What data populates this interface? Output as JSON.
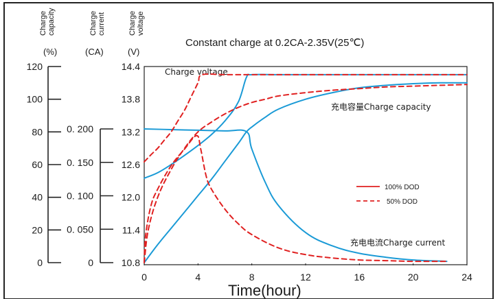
{
  "chart_data": {
    "type": "line",
    "title": "Constant charge at 0.2CA-2.35V(25℃)",
    "xlabel": "Time(hour)",
    "x_ticks": [
      0,
      4,
      8,
      12,
      16,
      20,
      24
    ],
    "xlim": [
      0,
      24
    ],
    "axes": [
      {
        "key": "capacity",
        "label_line1": "Charge",
        "label_line2": "capacity",
        "unit": "(%)",
        "ticks": [
          "120",
          "100",
          "80",
          "60",
          "40",
          "20",
          "0"
        ],
        "range": [
          0,
          120
        ]
      },
      {
        "key": "current",
        "label_line1": "Charge",
        "label_line2": "current",
        "unit": "(CA)",
        "ticks": [
          "0. 200",
          "0. 150",
          "0. 100",
          "0. 050",
          "0"
        ],
        "range": [
          0,
          0.2
        ]
      },
      {
        "key": "voltage",
        "label_line1": "Charge",
        "label_line2": "voltage",
        "unit": "(V)",
        "ticks": [
          "14.4",
          "13.8",
          "13.2",
          "12.6",
          "12.0",
          "11.4",
          "10.8"
        ],
        "range": [
          10.8,
          14.4
        ]
      }
    ],
    "legend": {
      "position": "center-right",
      "entries": [
        {
          "label": "100% DOD",
          "style": "solid",
          "color": "#e02020"
        },
        {
          "label": "50% DOD",
          "style": "dashed",
          "color": "#e02020"
        }
      ]
    },
    "annotations": {
      "voltage": "Charge voltage",
      "capacity": "充电容量Charge  capacity",
      "current": "充电电流Charge  current"
    },
    "colors": {
      "dod100": "#1a9ad6",
      "dod50": "#e02020"
    },
    "series": [
      {
        "quantity": "voltage",
        "dod": "100%",
        "axis": "voltage",
        "x": [
          0,
          1,
          2,
          3,
          4,
          5,
          6,
          7,
          7.6,
          8,
          10,
          12,
          16,
          20,
          24
        ],
        "y": [
          12.35,
          12.45,
          12.6,
          12.77,
          12.95,
          13.15,
          13.4,
          13.75,
          14.2,
          14.25,
          14.25,
          14.25,
          14.25,
          14.25,
          14.25
        ]
      },
      {
        "quantity": "capacity",
        "dod": "100%",
        "axis": "capacity",
        "x": [
          0,
          1,
          2,
          3,
          4,
          5,
          6,
          7,
          7.6,
          8,
          9,
          10,
          12,
          14,
          16,
          18,
          20,
          22,
          24
        ],
        "y": [
          0,
          11,
          21,
          31,
          41,
          51,
          62,
          73,
          80,
          83,
          89,
          94,
          100,
          104,
          107,
          108.5,
          109.5,
          110,
          110
        ]
      },
      {
        "quantity": "current",
        "dod": "100%",
        "axis": "current",
        "x": [
          0,
          2,
          4,
          6,
          7.6,
          8,
          9,
          10,
          12,
          14,
          16,
          18,
          20,
          22.5
        ],
        "y": [
          0.2,
          0.199,
          0.198,
          0.197,
          0.196,
          0.17,
          0.12,
          0.085,
          0.045,
          0.025,
          0.014,
          0.008,
          0.004,
          0.002
        ]
      },
      {
        "quantity": "voltage",
        "dod": "50%",
        "axis": "voltage",
        "x": [
          0,
          0.5,
          1,
          1.5,
          2,
          2.5,
          3,
          3.5,
          4,
          4.3,
          6,
          8,
          12,
          16,
          20,
          24
        ],
        "y": [
          12.65,
          12.78,
          12.9,
          13.05,
          13.2,
          13.4,
          13.6,
          13.85,
          14.1,
          14.25,
          14.25,
          14.25,
          14.25,
          14.25,
          14.25,
          14.25
        ]
      },
      {
        "quantity": "capacity",
        "dod": "50%",
        "axis": "capacity",
        "x": [
          0,
          0.3,
          1,
          2,
          3,
          4,
          5,
          6,
          7,
          8,
          9,
          10,
          12,
          14,
          16,
          18,
          20,
          22,
          24
        ],
        "y": [
          0,
          20,
          40,
          57,
          70,
          80,
          86,
          91,
          95,
          98,
          100,
          102,
          104,
          105.5,
          106.5,
          107.5,
          108,
          108.5,
          109
        ]
      },
      {
        "quantity": "current",
        "dod": "50%",
        "axis": "current",
        "x": [
          0,
          0.1,
          0.5,
          1,
          2,
          3,
          3.9,
          4.2,
          4.6,
          5,
          6,
          7,
          8,
          10,
          12,
          14,
          16,
          18,
          20,
          22.5
        ],
        "y": [
          0,
          0.04,
          0.085,
          0.11,
          0.145,
          0.17,
          0.19,
          0.17,
          0.13,
          0.11,
          0.08,
          0.058,
          0.042,
          0.022,
          0.012,
          0.007,
          0.004,
          0.003,
          0.002,
          0.002
        ]
      }
    ]
  }
}
